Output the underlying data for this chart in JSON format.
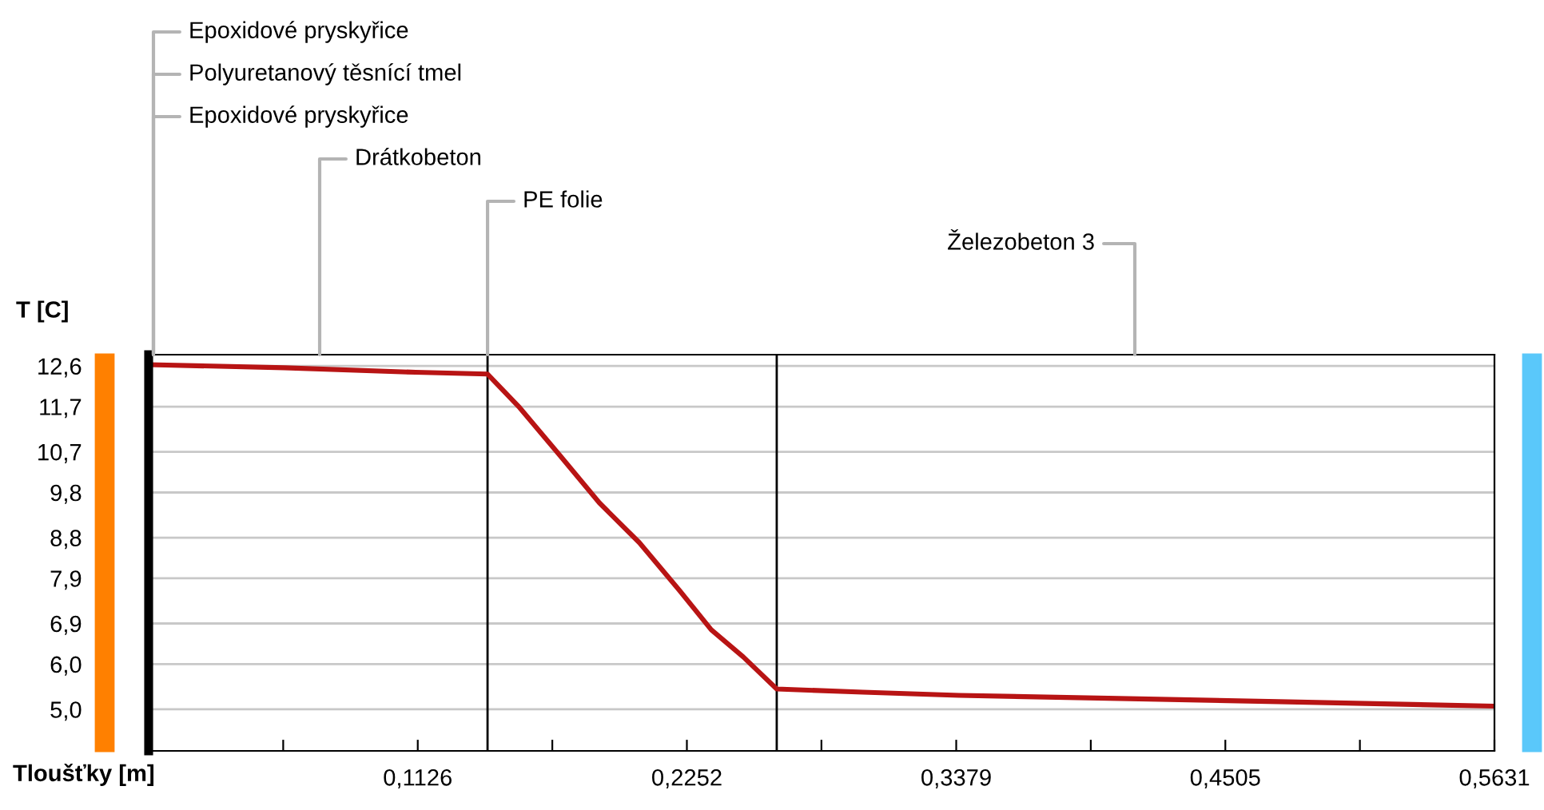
{
  "chart_data": {
    "type": "line",
    "xlabel": "Tloušťky [m]",
    "ylabel": "T [C]",
    "series": [
      {
        "color": "#b81414",
        "x": [
          0,
          0.0568,
          0.1117,
          0.1418,
          0.1552,
          0.1719,
          0.1886,
          0.2053,
          0.222,
          0.2354,
          0.2488,
          0.2628,
          0.2989,
          0.3391,
          0.4059,
          0.4728,
          0.5631
        ],
        "values": [
          12.63,
          12.56,
          12.46,
          12.42,
          11.68,
          10.63,
          9.57,
          8.69,
          7.64,
          6.76,
          6.16,
          5.45,
          5.38,
          5.31,
          5.24,
          5.17,
          5.07
        ]
      }
    ],
    "xlim": [
      0,
      0.5631
    ],
    "ylim": [
      4.08,
      12.85
    ],
    "xticks": [
      {
        "value": 0.0563,
        "label": null
      },
      {
        "value": 0.1126,
        "label": "0,1126"
      },
      {
        "value": 0.1689,
        "label": null
      },
      {
        "value": 0.2252,
        "label": "0,2252"
      },
      {
        "value": 0.2815,
        "label": null
      },
      {
        "value": 0.3379,
        "label": "0,3379"
      },
      {
        "value": 0.3942,
        "label": null
      },
      {
        "value": 0.4505,
        "label": "0,4505"
      },
      {
        "value": 0.5068,
        "label": null
      },
      {
        "value": 0.5631,
        "label": "0,5631"
      }
    ],
    "yticks": [
      {
        "value": 5.0,
        "label": "5,0"
      },
      {
        "value": 6.0,
        "label": "6,0"
      },
      {
        "value": 6.9,
        "label": "6,9"
      },
      {
        "value": 7.9,
        "label": "7,9"
      },
      {
        "value": 8.8,
        "label": "8,8"
      },
      {
        "value": 9.8,
        "label": "9,8"
      },
      {
        "value": 10.7,
        "label": "10,7"
      },
      {
        "value": 11.7,
        "label": "11,7"
      },
      {
        "value": 12.6,
        "label": "12,6"
      }
    ],
    "grid": "y",
    "marker": "none",
    "line_style": "solid",
    "legend": false,
    "ref_lines": [
      {
        "axis": "x",
        "value": 0.1418,
        "color": "#000000"
      },
      {
        "axis": "x",
        "value": 0.2628,
        "color": "#000000"
      }
    ],
    "annotations": [
      "Epoxidové pryskyřice",
      "Polyuretanový těsnící tmel",
      "Epoxidové pryskyřice",
      "Drátkobeton",
      {
        "text": "PE folie",
        "x": 0.1418,
        "y": 12.85
      },
      "Železobeton 3"
    ]
  }
}
